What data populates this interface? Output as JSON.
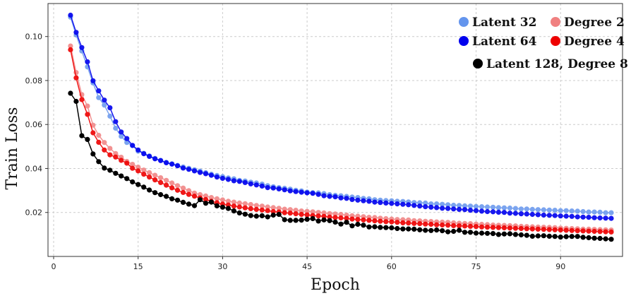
{
  "chart_data": {
    "type": "line",
    "xlabel": "Epoch",
    "ylabel": "Train Loss",
    "xlim": [
      -1,
      101
    ],
    "ylim": [
      0.0,
      0.115
    ],
    "xticks": [
      0,
      15,
      30,
      45,
      60,
      75,
      90
    ],
    "yticks": [
      0.02,
      0.04,
      0.06,
      0.08,
      0.1
    ],
    "grid": true,
    "legend_position": "top-right",
    "series": [
      {
        "name": "Latent 32",
        "color": "#6495ED",
        "x": [
          3,
          4,
          5,
          6,
          7,
          8,
          9,
          10,
          11,
          12,
          13,
          14,
          15,
          16,
          17,
          18,
          19,
          20,
          21,
          22,
          23,
          24,
          25,
          26,
          27,
          28,
          29,
          30,
          31,
          32,
          33,
          34,
          35,
          36,
          37,
          38,
          39,
          40,
          41,
          42,
          43,
          44,
          45,
          46,
          47,
          48,
          49,
          50,
          51,
          52,
          53,
          54,
          55,
          56,
          57,
          58,
          59,
          60,
          61,
          62,
          63,
          64,
          65,
          66,
          67,
          68,
          69,
          70,
          71,
          72,
          73,
          74,
          75,
          76,
          77,
          78,
          79,
          80,
          81,
          82,
          83,
          84,
          85,
          86,
          87,
          88,
          89,
          90,
          91,
          92,
          93,
          94,
          95,
          96,
          97,
          98,
          99
        ],
        "y": [
          0.1088,
          0.1007,
          0.0934,
          0.0862,
          0.0789,
          0.0722,
          0.0688,
          0.0638,
          0.0583,
          0.0546,
          0.0518,
          0.0504,
          0.0479,
          0.0469,
          0.0457,
          0.0446,
          0.0437,
          0.0428,
          0.0421,
          0.0414,
          0.0407,
          0.0401,
          0.0394,
          0.0388,
          0.0381,
          0.0374,
          0.0368,
          0.0363,
          0.0357,
          0.0353,
          0.0346,
          0.0343,
          0.0338,
          0.0334,
          0.0329,
          0.0322,
          0.0317,
          0.0313,
          0.031,
          0.0306,
          0.0301,
          0.0298,
          0.0293,
          0.029,
          0.0289,
          0.0286,
          0.0281,
          0.0278,
          0.0276,
          0.0273,
          0.027,
          0.0268,
          0.0264,
          0.0262,
          0.0258,
          0.0256,
          0.0254,
          0.0253,
          0.0251,
          0.025,
          0.0248,
          0.0245,
          0.0244,
          0.0243,
          0.0239,
          0.0239,
          0.0237,
          0.0235,
          0.0233,
          0.0232,
          0.023,
          0.0229,
          0.0227,
          0.0226,
          0.0225,
          0.0224,
          0.0222,
          0.0221,
          0.022,
          0.0218,
          0.0216,
          0.0216,
          0.0214,
          0.0213,
          0.0212,
          0.0211,
          0.021,
          0.0208,
          0.0208,
          0.0207,
          0.0206,
          0.0204,
          0.0202,
          0.0202,
          0.0201,
          0.0199,
          0.0199
        ]
      },
      {
        "name": "Latent 64",
        "color": "#0000EE",
        "x": [
          3,
          4,
          5,
          6,
          7,
          8,
          9,
          10,
          11,
          12,
          13,
          14,
          15,
          16,
          17,
          18,
          19,
          20,
          21,
          22,
          23,
          24,
          25,
          26,
          27,
          28,
          29,
          30,
          31,
          32,
          33,
          34,
          35,
          36,
          37,
          38,
          39,
          40,
          41,
          42,
          43,
          44,
          45,
          46,
          47,
          48,
          49,
          50,
          51,
          52,
          53,
          54,
          55,
          56,
          57,
          58,
          59,
          60,
          61,
          62,
          63,
          64,
          65,
          66,
          67,
          68,
          69,
          70,
          71,
          72,
          73,
          74,
          75,
          76,
          77,
          78,
          79,
          80,
          81,
          82,
          83,
          84,
          85,
          86,
          87,
          88,
          89,
          90,
          91,
          92,
          93,
          94,
          95,
          96,
          97,
          98,
          99
        ],
        "y": [
          0.1097,
          0.1019,
          0.095,
          0.0885,
          0.0799,
          0.0753,
          0.0711,
          0.0676,
          0.0613,
          0.0566,
          0.0536,
          0.0505,
          0.0484,
          0.0467,
          0.0455,
          0.0444,
          0.0436,
          0.0426,
          0.042,
          0.0412,
          0.0402,
          0.0396,
          0.0389,
          0.0382,
          0.0376,
          0.0369,
          0.0361,
          0.0355,
          0.035,
          0.0344,
          0.0341,
          0.0336,
          0.033,
          0.0325,
          0.032,
          0.0313,
          0.0311,
          0.0307,
          0.0303,
          0.0298,
          0.0295,
          0.0292,
          0.0289,
          0.0287,
          0.0282,
          0.0276,
          0.0273,
          0.0271,
          0.0266,
          0.0264,
          0.0259,
          0.0256,
          0.0253,
          0.0251,
          0.0247,
          0.0245,
          0.0243,
          0.0241,
          0.0239,
          0.0237,
          0.0235,
          0.0232,
          0.0229,
          0.0226,
          0.0224,
          0.0222,
          0.0219,
          0.0218,
          0.0216,
          0.0214,
          0.0213,
          0.021,
          0.0208,
          0.0206,
          0.0204,
          0.0203,
          0.0201,
          0.02,
          0.0197,
          0.0196,
          0.0194,
          0.0193,
          0.0191,
          0.019,
          0.0188,
          0.0187,
          0.0186,
          0.0184,
          0.0183,
          0.0182,
          0.018,
          0.0179,
          0.0178,
          0.0176,
          0.0175,
          0.0174,
          0.0173
        ]
      },
      {
        "name": "Degree 2",
        "color": "#F08080",
        "x": [
          3,
          4,
          5,
          6,
          7,
          8,
          9,
          10,
          11,
          12,
          13,
          14,
          15,
          16,
          17,
          18,
          19,
          20,
          21,
          22,
          23,
          24,
          25,
          26,
          27,
          28,
          29,
          30,
          31,
          32,
          33,
          34,
          35,
          36,
          37,
          38,
          39,
          40,
          41,
          42,
          43,
          44,
          45,
          46,
          47,
          48,
          49,
          50,
          51,
          52,
          53,
          54,
          55,
          56,
          57,
          58,
          59,
          60,
          61,
          62,
          63,
          64,
          65,
          66,
          67,
          68,
          69,
          70,
          71,
          72,
          73,
          74,
          75,
          76,
          77,
          78,
          79,
          80,
          81,
          82,
          83,
          84,
          85,
          86,
          87,
          88,
          89,
          90,
          91,
          92,
          93,
          94,
          95,
          96,
          97,
          98,
          99
        ],
        "y": [
          0.0957,
          0.0836,
          0.0736,
          0.0684,
          0.0597,
          0.0551,
          0.0518,
          0.0491,
          0.0468,
          0.0451,
          0.0432,
          0.0419,
          0.0406,
          0.0393,
          0.0381,
          0.0369,
          0.0358,
          0.0346,
          0.0334,
          0.0322,
          0.0311,
          0.0299,
          0.0288,
          0.0281,
          0.0275,
          0.0268,
          0.0262,
          0.0257,
          0.0251,
          0.0247,
          0.0243,
          0.024,
          0.0236,
          0.0232,
          0.0229,
          0.0225,
          0.0222,
          0.0219,
          0.0215,
          0.0213,
          0.021,
          0.0207,
          0.0205,
          0.0203,
          0.02,
          0.0198,
          0.0195,
          0.0193,
          0.0191,
          0.0188,
          0.0185,
          0.0183,
          0.0181,
          0.0178,
          0.0177,
          0.0174,
          0.0172,
          0.017,
          0.0168,
          0.0167,
          0.0166,
          0.0163,
          0.0162,
          0.016,
          0.0159,
          0.0157,
          0.0156,
          0.0155,
          0.0153,
          0.0151,
          0.015,
          0.0149,
          0.0147,
          0.0146,
          0.0145,
          0.0143,
          0.0142,
          0.0141,
          0.014,
          0.0139,
          0.0137,
          0.0136,
          0.0135,
          0.0134,
          0.0133,
          0.0132,
          0.0131,
          0.0129,
          0.0128,
          0.0127,
          0.0126,
          0.0124,
          0.0124,
          0.0123,
          0.0122,
          0.0121,
          0.012
        ]
      },
      {
        "name": "Degree 4",
        "color": "#EE0000",
        "x": [
          3,
          4,
          5,
          6,
          7,
          8,
          9,
          10,
          11,
          12,
          13,
          14,
          15,
          16,
          17,
          18,
          19,
          20,
          21,
          22,
          23,
          24,
          25,
          26,
          27,
          28,
          29,
          30,
          31,
          32,
          33,
          34,
          35,
          36,
          37,
          38,
          39,
          40,
          41,
          42,
          43,
          44,
          45,
          46,
          47,
          48,
          49,
          50,
          51,
          52,
          53,
          54,
          55,
          56,
          57,
          58,
          59,
          60,
          61,
          62,
          63,
          64,
          65,
          66,
          67,
          68,
          69,
          70,
          71,
          72,
          73,
          74,
          75,
          76,
          77,
          78,
          79,
          80,
          81,
          82,
          83,
          84,
          85,
          86,
          87,
          88,
          89,
          90,
          91,
          92,
          93,
          94,
          95,
          96,
          97,
          98,
          99
        ],
        "y": [
          0.094,
          0.0812,
          0.0713,
          0.0646,
          0.0562,
          0.0519,
          0.0484,
          0.0462,
          0.0452,
          0.0437,
          0.0424,
          0.0401,
          0.0389,
          0.0374,
          0.0361,
          0.0348,
          0.0336,
          0.0324,
          0.0312,
          0.0301,
          0.0291,
          0.0282,
          0.0274,
          0.0266,
          0.0259,
          0.0251,
          0.0244,
          0.0238,
          0.0234,
          0.0229,
          0.0225,
          0.0221,
          0.0217,
          0.0214,
          0.0211,
          0.0208,
          0.0204,
          0.0202,
          0.0199,
          0.0197,
          0.0194,
          0.0191,
          0.0189,
          0.0186,
          0.0184,
          0.0182,
          0.0179,
          0.0177,
          0.0175,
          0.0173,
          0.017,
          0.0168,
          0.0166,
          0.0164,
          0.0162,
          0.016,
          0.0158,
          0.0157,
          0.0155,
          0.0153,
          0.0152,
          0.015,
          0.0149,
          0.0147,
          0.0146,
          0.0144,
          0.0143,
          0.0142,
          0.014,
          0.0139,
          0.0138,
          0.0137,
          0.0136,
          0.0134,
          0.0133,
          0.0132,
          0.0131,
          0.013,
          0.0129,
          0.0128,
          0.0127,
          0.0126,
          0.0125,
          0.0124,
          0.0123,
          0.0122,
          0.0121,
          0.012,
          0.0119,
          0.0118,
          0.0117,
          0.0116,
          0.0115,
          0.0114,
          0.0113,
          0.0112,
          0.0111
        ]
      },
      {
        "name": "Latent 128, Degree 8",
        "color": "#000000",
        "x": [
          3,
          4,
          5,
          6,
          7,
          8,
          9,
          10,
          11,
          12,
          13,
          14,
          15,
          16,
          17,
          18,
          19,
          20,
          21,
          22,
          23,
          24,
          25,
          26,
          27,
          28,
          29,
          30,
          31,
          32,
          33,
          34,
          35,
          36,
          37,
          38,
          39,
          40,
          41,
          42,
          43,
          44,
          45,
          46,
          47,
          48,
          49,
          50,
          51,
          52,
          53,
          54,
          55,
          56,
          57,
          58,
          59,
          60,
          61,
          62,
          63,
          64,
          65,
          66,
          67,
          68,
          69,
          70,
          71,
          72,
          73,
          74,
          75,
          76,
          77,
          78,
          79,
          80,
          81,
          82,
          83,
          84,
          85,
          86,
          87,
          88,
          89,
          90,
          91,
          92,
          93,
          94,
          95,
          96,
          97,
          98,
          99
        ],
        "y": [
          0.0742,
          0.0705,
          0.0549,
          0.0532,
          0.0466,
          0.0431,
          0.0402,
          0.0392,
          0.0378,
          0.0366,
          0.0354,
          0.0339,
          0.0327,
          0.0315,
          0.0302,
          0.029,
          0.0281,
          0.0273,
          0.0262,
          0.0256,
          0.0246,
          0.0238,
          0.0231,
          0.0258,
          0.0242,
          0.0247,
          0.023,
          0.0224,
          0.0218,
          0.0207,
          0.0198,
          0.0192,
          0.0186,
          0.0183,
          0.0185,
          0.018,
          0.0188,
          0.0191,
          0.0167,
          0.0164,
          0.0164,
          0.0165,
          0.0169,
          0.0172,
          0.0161,
          0.0166,
          0.0163,
          0.0156,
          0.0147,
          0.0155,
          0.0139,
          0.0146,
          0.0142,
          0.0134,
          0.0135,
          0.0132,
          0.0131,
          0.013,
          0.0127,
          0.0125,
          0.0125,
          0.0124,
          0.0121,
          0.0119,
          0.0118,
          0.012,
          0.0117,
          0.0112,
          0.0114,
          0.0119,
          0.011,
          0.011,
          0.0106,
          0.0106,
          0.0105,
          0.0104,
          0.01,
          0.0102,
          0.0103,
          0.01,
          0.0098,
          0.0096,
          0.0092,
          0.0093,
          0.0094,
          0.0092,
          0.0091,
          0.0088,
          0.009,
          0.0091,
          0.0091,
          0.0087,
          0.0085,
          0.0083,
          0.0082,
          0.008,
          0.0078
        ]
      }
    ]
  }
}
